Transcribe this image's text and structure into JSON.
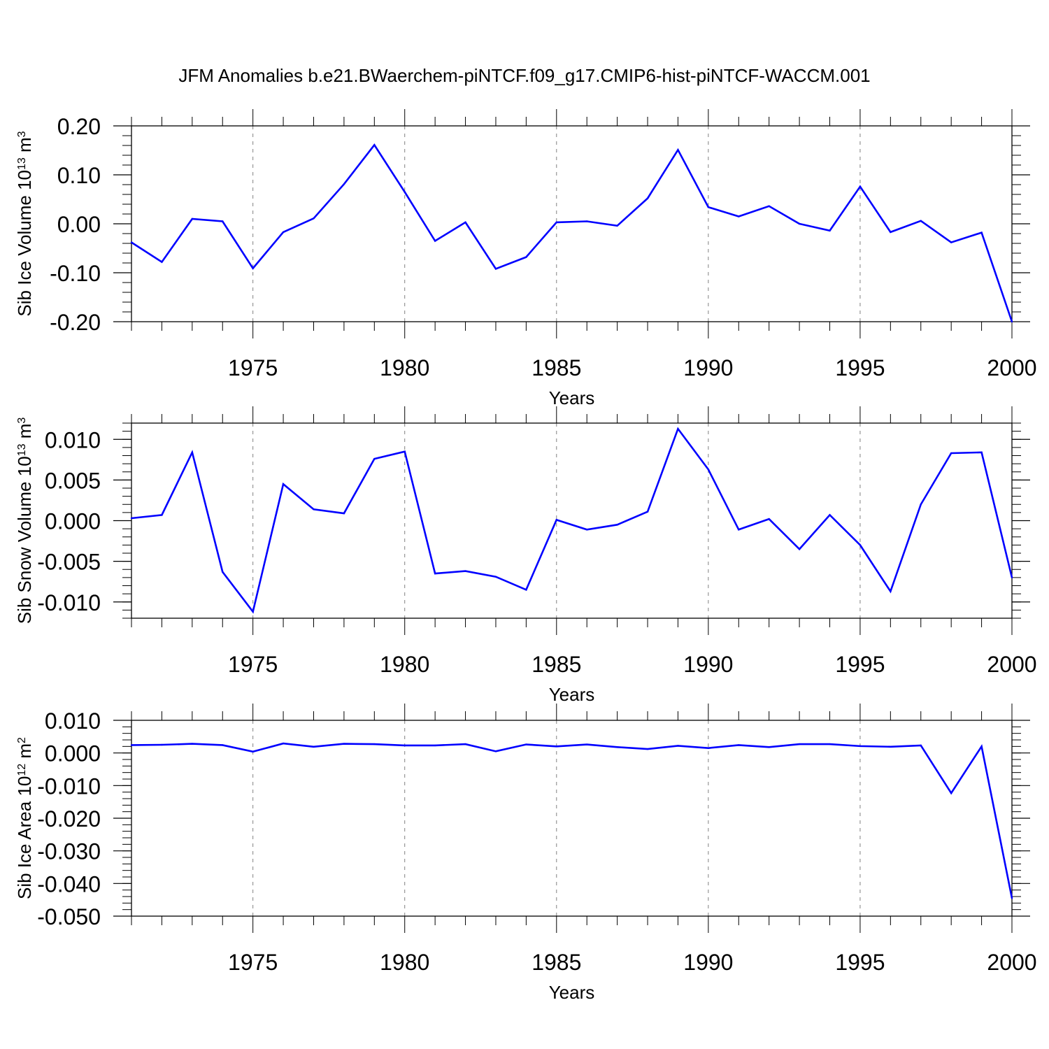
{
  "title": "JFM Anomalies b.e21.BWaerchem-piNTCF.f09_g17.CMIP6-hist-piNTCF-WACCM.001",
  "colors": {
    "line": "#0000ff",
    "axis": "#000000",
    "gridline": "#808080"
  },
  "chart_data": [
    {
      "type": "line",
      "ylabel": {
        "prefix": "Sib Ice Volume 10",
        "exp": "13",
        "unit": " m",
        "unit_exp": "3"
      },
      "xlabel": "Years",
      "xlim": [
        1971,
        2000
      ],
      "ylim": [
        -0.2,
        0.2
      ],
      "yticks": [
        -0.2,
        -0.1,
        0.0,
        0.1,
        0.2
      ],
      "ytick_labels": [
        "-0.20",
        "-0.10",
        "0.00",
        "0.10",
        "0.20"
      ],
      "xticks": [
        1975,
        1980,
        1985,
        1990,
        1995,
        2000
      ],
      "xtick_labels": [
        "1975",
        "1980",
        "1985",
        "1990",
        "1995",
        "2000"
      ],
      "x": [
        1971,
        1972,
        1973,
        1974,
        1975,
        1976,
        1977,
        1978,
        1979,
        1980,
        1981,
        1982,
        1983,
        1984,
        1985,
        1986,
        1987,
        1988,
        1989,
        1990,
        1991,
        1992,
        1993,
        1994,
        1995,
        1996,
        1997,
        1998,
        1999,
        2000
      ],
      "series": [
        {
          "name": "Sib Ice Volume",
          "values": [
            -0.038,
            -0.078,
            0.01,
            0.005,
            -0.091,
            -0.017,
            0.011,
            0.081,
            0.161,
            0.065,
            -0.035,
            0.003,
            -0.092,
            -0.068,
            0.003,
            0.005,
            -0.004,
            0.052,
            0.151,
            0.034,
            0.015,
            0.036,
            0.0,
            -0.014,
            0.076,
            -0.017,
            0.006,
            -0.038,
            -0.018,
            -0.2
          ]
        }
      ]
    },
    {
      "type": "line",
      "ylabel": {
        "prefix": "Sib Snow Volume 10",
        "exp": "13",
        "unit": " m",
        "unit_exp": "3"
      },
      "xlabel": "Years",
      "xlim": [
        1971,
        2000
      ],
      "ylim": [
        -0.012,
        0.012
      ],
      "yticks": [
        -0.01,
        -0.005,
        0.0,
        0.005,
        0.01
      ],
      "ytick_labels": [
        "-0.010",
        "-0.005",
        "0.000",
        "0.005",
        "0.010"
      ],
      "xticks": [
        1975,
        1980,
        1985,
        1990,
        1995,
        2000
      ],
      "xtick_labels": [
        "1975",
        "1980",
        "1985",
        "1990",
        "1995",
        "2000"
      ],
      "x": [
        1971,
        1972,
        1973,
        1974,
        1975,
        1976,
        1977,
        1978,
        1979,
        1980,
        1981,
        1982,
        1983,
        1984,
        1985,
        1986,
        1987,
        1988,
        1989,
        1990,
        1991,
        1992,
        1993,
        1994,
        1995,
        1996,
        1997,
        1998,
        1999,
        2000
      ],
      "series": [
        {
          "name": "Sib Snow Volume",
          "values": [
            0.0003,
            0.0007,
            0.0084,
            -0.0063,
            -0.0112,
            0.0045,
            0.0014,
            0.0009,
            0.0076,
            0.0085,
            -0.0065,
            -0.0062,
            -0.0069,
            -0.0085,
            0.0001,
            -0.0011,
            -0.0005,
            0.0011,
            0.0113,
            0.0063,
            -0.0011,
            0.0002,
            -0.0035,
            0.0007,
            -0.003,
            -0.0087,
            0.002,
            0.0083,
            0.0084,
            -0.007
          ]
        }
      ]
    },
    {
      "type": "line",
      "ylabel": {
        "prefix": "Sib Ice Area 10",
        "exp": "12",
        "unit": " m",
        "unit_exp": "2"
      },
      "xlabel": "Years",
      "xlim": [
        1971,
        2000
      ],
      "ylim": [
        -0.05,
        0.01
      ],
      "yticks": [
        -0.05,
        -0.04,
        -0.03,
        -0.02,
        -0.01,
        0.0,
        0.01
      ],
      "ytick_labels": [
        "-0.050",
        "-0.040",
        "-0.030",
        "-0.020",
        "-0.010",
        "0.000",
        "0.010"
      ],
      "xticks": [
        1975,
        1980,
        1985,
        1990,
        1995,
        2000
      ],
      "xtick_labels": [
        "1975",
        "1980",
        "1985",
        "1990",
        "1995",
        "2000"
      ],
      "x": [
        1971,
        1972,
        1973,
        1974,
        1975,
        1976,
        1977,
        1978,
        1979,
        1980,
        1981,
        1982,
        1983,
        1984,
        1985,
        1986,
        1987,
        1988,
        1989,
        1990,
        1991,
        1992,
        1993,
        1994,
        1995,
        1996,
        1997,
        1998,
        1999,
        2000
      ],
      "series": [
        {
          "name": "Sib Ice Area",
          "values": [
            0.0024,
            0.0025,
            0.0028,
            0.0024,
            0.0004,
            0.0029,
            0.0019,
            0.0028,
            0.0027,
            0.0023,
            0.0023,
            0.0027,
            0.0005,
            0.0026,
            0.002,
            0.0026,
            0.0018,
            0.0012,
            0.0022,
            0.0015,
            0.0024,
            0.0018,
            0.0027,
            0.0027,
            0.0021,
            0.0019,
            0.0023,
            -0.0123,
            0.002,
            -0.0445
          ]
        }
      ]
    }
  ]
}
